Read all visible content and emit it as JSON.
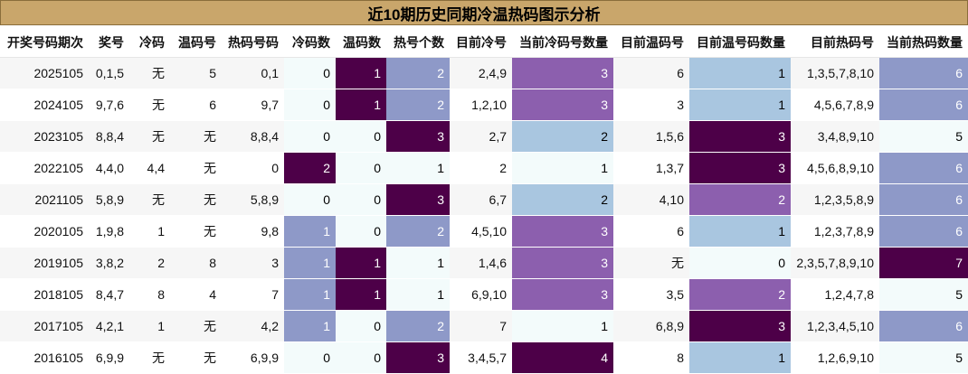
{
  "title": "近10期历史同期冷温热码图示分析",
  "headers": [
    "开奖号码期次",
    "奖号",
    "冷码",
    "温码号",
    "热码号码",
    "冷码数",
    "温码数",
    "热号个数",
    "目前冷号",
    "当前冷码号数量",
    "目前温码号",
    "目前温号码数量",
    "目前热码号",
    "当前热码数量"
  ],
  "rows": [
    {
      "period": "2025105",
      "winning": "0,1,5",
      "cold": "无",
      "warm": "5",
      "hot": "0,1",
      "cold_count": 0,
      "warm_count": 1,
      "hot_count": 2,
      "cur_cold": "2,4,9",
      "cur_cold_qty": 3,
      "cur_warm": "6",
      "cur_warm_qty": 1,
      "cur_hot": "1,3,5,7,8,10",
      "cur_hot_qty": 6
    },
    {
      "period": "2024105",
      "winning": "9,7,6",
      "cold": "无",
      "warm": "6",
      "hot": "9,7",
      "cold_count": 0,
      "warm_count": 1,
      "hot_count": 2,
      "cur_cold": "1,2,10",
      "cur_cold_qty": 3,
      "cur_warm": "3",
      "cur_warm_qty": 1,
      "cur_hot": "4,5,6,7,8,9",
      "cur_hot_qty": 6
    },
    {
      "period": "2023105",
      "winning": "8,8,4",
      "cold": "无",
      "warm": "无",
      "hot": "8,8,4",
      "cold_count": 0,
      "warm_count": 0,
      "hot_count": 3,
      "cur_cold": "2,7",
      "cur_cold_qty": 2,
      "cur_warm": "1,5,6",
      "cur_warm_qty": 3,
      "cur_hot": "3,4,8,9,10",
      "cur_hot_qty": 5
    },
    {
      "period": "2022105",
      "winning": "4,4,0",
      "cold": "4,4",
      "warm": "无",
      "hot": "0",
      "cold_count": 2,
      "warm_count": 0,
      "hot_count": 1,
      "cur_cold": "2",
      "cur_cold_qty": 1,
      "cur_warm": "1,3,7",
      "cur_warm_qty": 3,
      "cur_hot": "4,5,6,8,9,10",
      "cur_hot_qty": 6
    },
    {
      "period": "2021105",
      "winning": "5,8,9",
      "cold": "无",
      "warm": "无",
      "hot": "5,8,9",
      "cold_count": 0,
      "warm_count": 0,
      "hot_count": 3,
      "cur_cold": "6,7",
      "cur_cold_qty": 2,
      "cur_warm": "4,10",
      "cur_warm_qty": 2,
      "cur_hot": "1,2,3,5,8,9",
      "cur_hot_qty": 6
    },
    {
      "period": "2020105",
      "winning": "1,9,8",
      "cold": "1",
      "warm": "无",
      "hot": "9,8",
      "cold_count": 1,
      "warm_count": 0,
      "hot_count": 2,
      "cur_cold": "4,5,10",
      "cur_cold_qty": 3,
      "cur_warm": "6",
      "cur_warm_qty": 1,
      "cur_hot": "1,2,3,7,8,9",
      "cur_hot_qty": 6
    },
    {
      "period": "2019105",
      "winning": "3,8,2",
      "cold": "2",
      "warm": "8",
      "hot": "3",
      "cold_count": 1,
      "warm_count": 1,
      "hot_count": 1,
      "cur_cold": "1,4,6",
      "cur_cold_qty": 3,
      "cur_warm": "无",
      "cur_warm_qty": 0,
      "cur_hot": "2,3,5,7,8,9,10",
      "cur_hot_qty": 7
    },
    {
      "period": "2018105",
      "winning": "8,4,7",
      "cold": "8",
      "warm": "4",
      "hot": "7",
      "cold_count": 1,
      "warm_count": 1,
      "hot_count": 1,
      "cur_cold": "6,9,10",
      "cur_cold_qty": 3,
      "cur_warm": "3,5",
      "cur_warm_qty": 2,
      "cur_hot": "1,2,4,7,8",
      "cur_hot_qty": 5
    },
    {
      "period": "2017105",
      "winning": "4,2,1",
      "cold": "1",
      "warm": "无",
      "hot": "4,2",
      "cold_count": 1,
      "warm_count": 0,
      "hot_count": 2,
      "cur_cold": "7",
      "cur_cold_qty": 1,
      "cur_warm": "6,8,9",
      "cur_warm_qty": 3,
      "cur_hot": "1,2,3,4,5,10",
      "cur_hot_qty": 6
    },
    {
      "period": "2016105",
      "winning": "6,9,9",
      "cold": "无",
      "warm": "无",
      "hot": "6,9,9",
      "cold_count": 0,
      "warm_count": 0,
      "hot_count": 3,
      "cur_cold": "3,4,5,7",
      "cur_cold_qty": 4,
      "cur_warm": "8",
      "cur_warm_qty": 1,
      "cur_hot": "1,2,6,9,10",
      "cur_hot_qty": 5
    }
  ],
  "heat_colors": [
    "#f3fbfb",
    "#a9c6e0",
    "#8e99c8",
    "#8c5fae",
    "#4d0048"
  ]
}
